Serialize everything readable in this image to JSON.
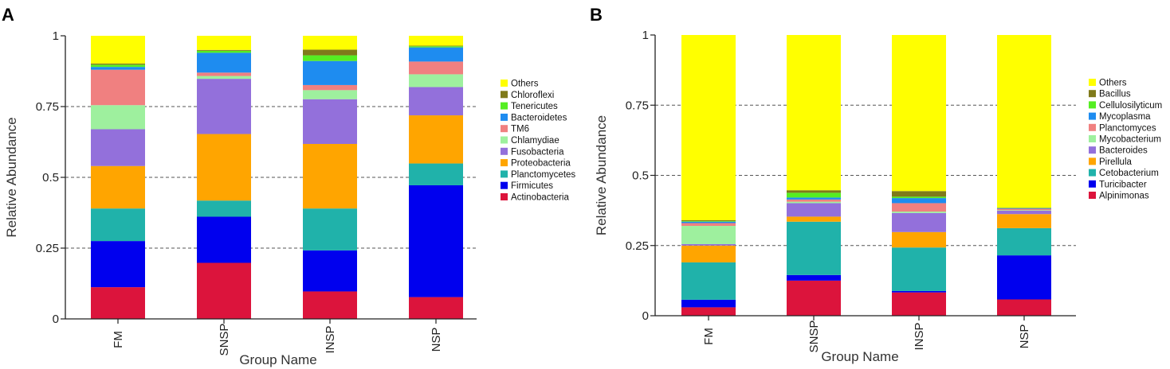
{
  "colors": {
    "Others": "#ffff00",
    "Chloroflexi": "#7f7a1a",
    "Tenericutes": "#55ee22",
    "Bacteroidetes": "#1e8cf0",
    "TM6": "#f08080",
    "Chlamydiae": "#9ef09e",
    "Fusobacteria": "#9370db",
    "Proteobacteria": "#ffa500",
    "Planctomycetes": "#20b2aa",
    "Firmicutes": "#0000ee",
    "Actinobacteria": "#dc143c",
    "Bacillus": "#7f7a1a",
    "Cellulosilyticum": "#55ee22",
    "Mycoplasma": "#1e8cf0",
    "Planctomyces": "#f08080",
    "Mycobacterium": "#9ef09e",
    "Bacteroides": "#9370db",
    "Pirellula": "#ffa500",
    "Cetobacterium": "#20b2aa",
    "Turicibacter": "#0000ee",
    "Alpinimonas": "#dc143c"
  },
  "chart_data": [
    {
      "panel": "A",
      "type": "bar",
      "stacked": true,
      "xlabel": "Group Name",
      "ylabel": "Relative Abundance",
      "ylim": [
        0,
        1
      ],
      "yticks": [
        "0",
        "0.25",
        "0.5",
        "0.75",
        "1"
      ],
      "categories": [
        "FM",
        "SNSP",
        "INSP",
        "NSP"
      ],
      "series": [
        {
          "name": "Actinobacteria",
          "values": [
            0.112,
            0.198,
            0.097,
            0.077
          ]
        },
        {
          "name": "Firmicutes",
          "values": [
            0.163,
            0.163,
            0.145,
            0.395
          ]
        },
        {
          "name": "Planctomycetes",
          "values": [
            0.115,
            0.057,
            0.148,
            0.077
          ]
        },
        {
          "name": "Proteobacteria",
          "values": [
            0.15,
            0.235,
            0.228,
            0.17
          ]
        },
        {
          "name": "Fusobacteria",
          "values": [
            0.13,
            0.195,
            0.158,
            0.1
          ]
        },
        {
          "name": "Chlamydiae",
          "values": [
            0.085,
            0.01,
            0.032,
            0.045
          ]
        },
        {
          "name": "TM6",
          "values": [
            0.125,
            0.012,
            0.018,
            0.045
          ]
        },
        {
          "name": "Bacteroidetes",
          "values": [
            0.01,
            0.07,
            0.085,
            0.05
          ]
        },
        {
          "name": "Tenericutes",
          "values": [
            0.008,
            0.007,
            0.02,
            0.004
          ]
        },
        {
          "name": "Chloroflexi",
          "values": [
            0.004,
            0.003,
            0.02,
            0.002
          ]
        },
        {
          "name": "Others",
          "values": [
            0.098,
            0.05,
            0.049,
            0.035
          ]
        }
      ],
      "legend": [
        "Others",
        "Chloroflexi",
        "Tenericutes",
        "Bacteroidetes",
        "TM6",
        "Chlamydiae",
        "Fusobacteria",
        "Proteobacteria",
        "Planctomycetes",
        "Firmicutes",
        "Actinobacteria"
      ],
      "legend_position": "right",
      "grid": "dashed horizontal at 0.25, 0.5, 0.75"
    },
    {
      "panel": "B",
      "type": "bar",
      "stacked": true,
      "xlabel": "Group Name",
      "ylabel": "Relative Abundance",
      "ylim": [
        0,
        1
      ],
      "yticks": [
        "0",
        "0.25",
        "0.5",
        "0.75",
        "1"
      ],
      "categories": [
        "FM",
        "SNSP",
        "INSP",
        "NSP"
      ],
      "series": [
        {
          "name": "Alpinimonas",
          "values": [
            0.03,
            0.125,
            0.083,
            0.058
          ]
        },
        {
          "name": "Turicibacter",
          "values": [
            0.027,
            0.02,
            0.005,
            0.157
          ]
        },
        {
          "name": "Cetobacterium",
          "values": [
            0.133,
            0.19,
            0.155,
            0.097
          ]
        },
        {
          "name": "Pirellula",
          "values": [
            0.06,
            0.018,
            0.055,
            0.05
          ]
        },
        {
          "name": "Bacteroides",
          "values": [
            0.005,
            0.048,
            0.068,
            0.012
          ]
        },
        {
          "name": "Mycobacterium",
          "values": [
            0.065,
            0.005,
            0.005,
            0.002
          ]
        },
        {
          "name": "Planctomyces",
          "values": [
            0.01,
            0.008,
            0.03,
            0.005
          ]
        },
        {
          "name": "Mycoplasma",
          "values": [
            0.005,
            0.007,
            0.018,
            0.002
          ]
        },
        {
          "name": "Cellulosilyticum",
          "values": [
            0.002,
            0.017,
            0.005,
            0.001
          ]
        },
        {
          "name": "Bacillus",
          "values": [
            0.003,
            0.009,
            0.02,
            0.001
          ]
        },
        {
          "name": "Others",
          "values": [
            0.66,
            0.553,
            0.556,
            0.615
          ]
        }
      ],
      "legend": [
        "Others",
        "Bacillus",
        "Cellulosilyticum",
        "Mycoplasma",
        "Planctomyces",
        "Mycobacterium",
        "Bacteroides",
        "Pirellula",
        "Cetobacterium",
        "Turicibacter",
        "Alpinimonas"
      ],
      "legend_position": "right",
      "grid": "dashed horizontal at 0.25, 0.5, 0.75"
    }
  ]
}
